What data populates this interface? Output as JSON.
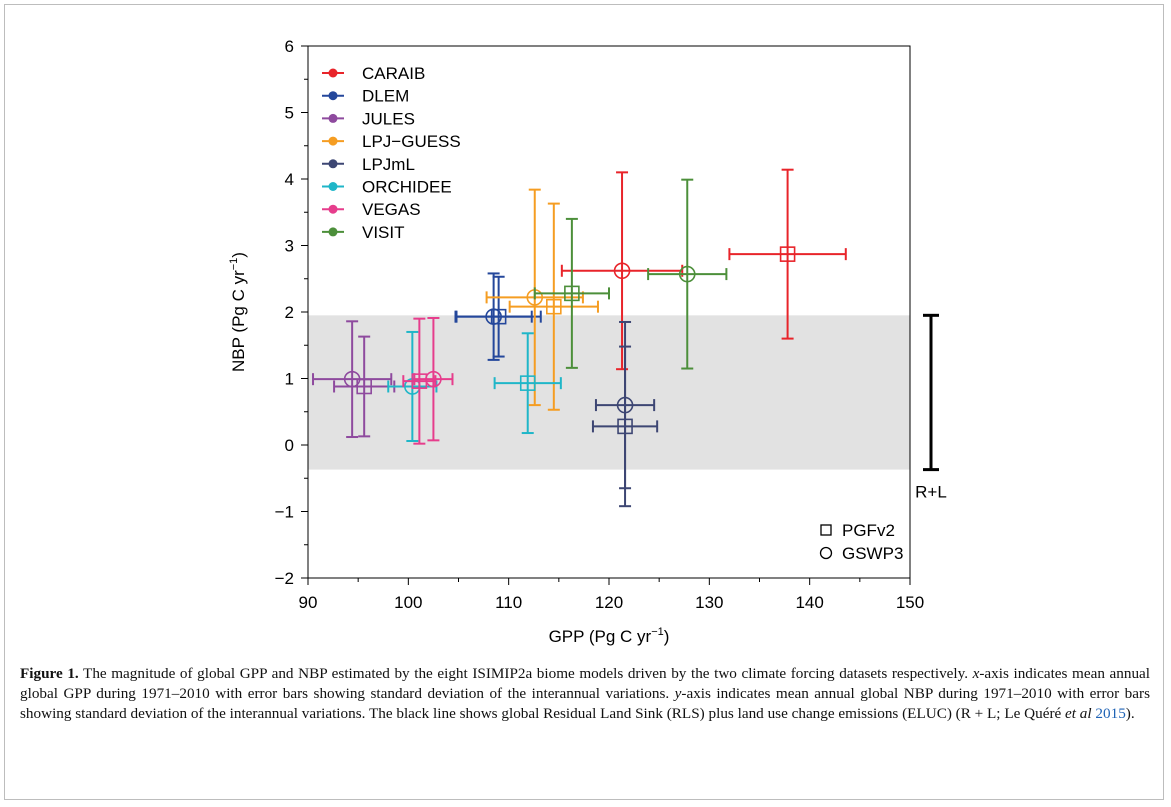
{
  "figure": {
    "label": "Figure 1.",
    "caption_parts": [
      {
        "text": " The magnitude of global GPP and NBP estimated by the eight ISIMIP2a biome models driven by the two climate forcing datasets respectively. ",
        "style": "normal"
      },
      {
        "text": "x",
        "style": "italic"
      },
      {
        "text": "-axis indicates mean annual global GPP during 1971–2010 with error bars showing standard deviation of the interannual variations. ",
        "style": "normal"
      },
      {
        "text": "y",
        "style": "italic"
      },
      {
        "text": "-axis indicates mean annual global NBP during 1971–2010 with error bars showing standard deviation of the interannual variations. The black line shows global Residual Land Sink (RLS) plus land use change emissions (ELUC) (R + L; Le Quéré ",
        "style": "normal"
      },
      {
        "text": "et al",
        "style": "italic"
      },
      {
        "text": " ",
        "style": "normal"
      },
      {
        "text": "2015",
        "style": "cite"
      },
      {
        "text": ").",
        "style": "normal"
      }
    ]
  },
  "chart_data": {
    "type": "scatter",
    "xlabel_main": "GPP (Pg C yr",
    "xlabel_sup": "−1",
    "xlabel_end": ")",
    "ylabel_main": "NBP (Pg C yr",
    "ylabel_sup": "−1",
    "ylabel_end": ")",
    "xlim": [
      90,
      150
    ],
    "ylim": [
      -2,
      6
    ],
    "xticks": [
      90,
      100,
      110,
      120,
      130,
      140,
      150
    ],
    "yticks": [
      -2,
      -1,
      0,
      1,
      2,
      3,
      4,
      5,
      6
    ],
    "ytick_labels": [
      "−2",
      "−1",
      "0",
      "1",
      "2",
      "3",
      "4",
      "5",
      "6"
    ],
    "grey_band": [
      -0.37,
      1.95
    ],
    "rl_bar": {
      "label": "R+L",
      "low": -0.37,
      "high": 1.95,
      "color": "#000000"
    },
    "marker_legend": [
      {
        "label": "PGFv2",
        "marker": "square"
      },
      {
        "label": "GSWP3",
        "marker": "circle"
      }
    ],
    "series": [
      {
        "name": "CARAIB",
        "color": "#e8242a",
        "points": [
          {
            "forcing": "PGFv2",
            "x": 137.8,
            "xerr": 5.8,
            "y": 2.87,
            "yerr": 1.27
          },
          {
            "forcing": "GSWP3",
            "x": 121.3,
            "xerr": 6.0,
            "y": 2.62,
            "yerr": 1.48
          }
        ]
      },
      {
        "name": "DLEM",
        "color": "#24479b",
        "points": [
          {
            "forcing": "PGFv2",
            "x": 109.0,
            "xerr": 4.2,
            "y": 1.93,
            "yerr": 0.6
          },
          {
            "forcing": "GSWP3",
            "x": 108.5,
            "xerr": 3.8,
            "y": 1.93,
            "yerr": 0.65
          }
        ]
      },
      {
        "name": "JULES",
        "color": "#8e4a9e",
        "points": [
          {
            "forcing": "PGFv2",
            "x": 95.6,
            "xerr": 3.0,
            "y": 0.88,
            "yerr": 0.75
          },
          {
            "forcing": "GSWP3",
            "x": 94.4,
            "xerr": 3.9,
            "y": 0.99,
            "yerr": 0.87
          }
        ]
      },
      {
        "name": "LPJ−GUESS",
        "color": "#f59d22",
        "points": [
          {
            "forcing": "PGFv2",
            "x": 114.5,
            "xerr": 4.4,
            "y": 2.08,
            "yerr": 1.55
          },
          {
            "forcing": "GSWP3",
            "x": 112.6,
            "xerr": 4.8,
            "y": 2.22,
            "yerr": 1.62
          }
        ]
      },
      {
        "name": "LPJmL",
        "color": "#3d4673",
        "points": [
          {
            "forcing": "PGFv2",
            "x": 121.6,
            "xerr": 3.2,
            "y": 0.28,
            "yerr": 1.2
          },
          {
            "forcing": "GSWP3",
            "x": 121.6,
            "xerr": 2.9,
            "y": 0.6,
            "yerr": 1.25
          }
        ]
      },
      {
        "name": "ORCHIDEE",
        "color": "#1fb6c8",
        "points": [
          {
            "forcing": "PGFv2",
            "x": 111.9,
            "xerr": 3.3,
            "y": 0.93,
            "yerr": 0.75
          },
          {
            "forcing": "GSWP3",
            "x": 100.4,
            "xerr": 2.4,
            "y": 0.88,
            "yerr": 0.82
          }
        ]
      },
      {
        "name": "VEGAS",
        "color": "#e63d8c",
        "points": [
          {
            "forcing": "PGFv2",
            "x": 101.1,
            "xerr": 1.6,
            "y": 0.96,
            "yerr": 0.94
          },
          {
            "forcing": "GSWP3",
            "x": 102.5,
            "xerr": 1.9,
            "y": 0.99,
            "yerr": 0.92
          }
        ]
      },
      {
        "name": "VISIT",
        "color": "#4c8f3a",
        "points": [
          {
            "forcing": "PGFv2",
            "x": 116.3,
            "xerr": 3.7,
            "y": 2.28,
            "yerr": 1.12
          },
          {
            "forcing": "GSWP3",
            "x": 127.8,
            "xerr": 3.9,
            "y": 2.57,
            "yerr": 1.42
          }
        ]
      }
    ]
  }
}
